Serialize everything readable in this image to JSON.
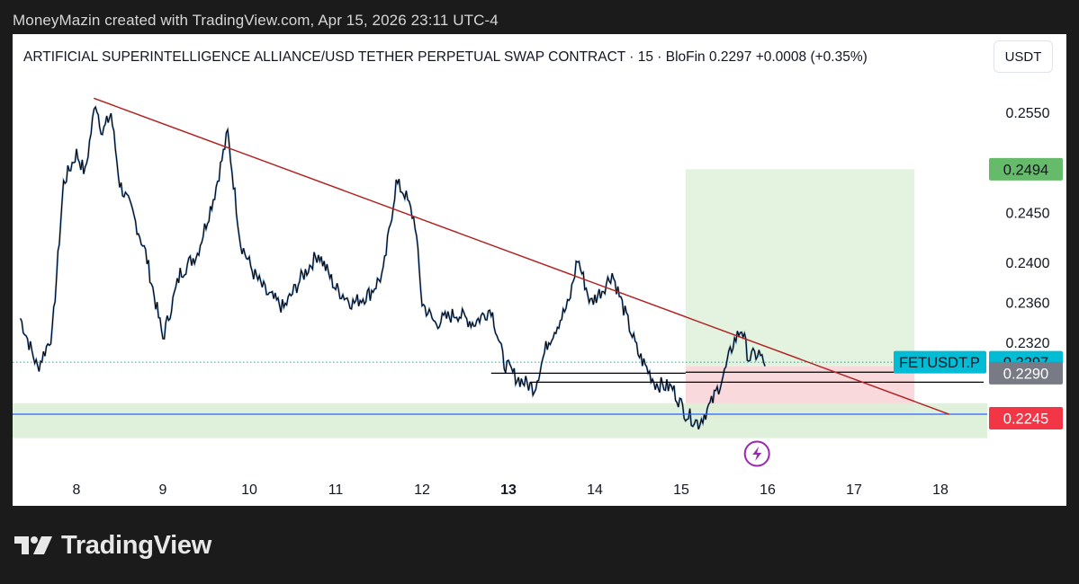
{
  "header": {
    "attribution": "MoneyMazin created with TradingView.com, Apr 15, 2026 23:11 UTC-4"
  },
  "toolbar": {
    "currency_label": "USDT"
  },
  "footer": {
    "brand": "TradingView"
  },
  "chart_data": {
    "type": "line",
    "title": "ARTIFICIAL SUPERINTELLIGENCE ALLIANCE/USD TETHER PERPETUAL SWAP CONTRACT · 15 · BloFin  0.2297  +0.0008 (+0.35%)",
    "interval": "15",
    "exchange": "BloFin",
    "last_price": 0.2297,
    "change": "+0.0008",
    "change_pct": "+0.35%",
    "x_day_range": [
      7.35,
      18.5
    ],
    "x_ticks": [
      {
        "label": "8",
        "day": 8,
        "bold": false
      },
      {
        "label": "9",
        "day": 9,
        "bold": false
      },
      {
        "label": "10",
        "day": 10,
        "bold": false
      },
      {
        "label": "11",
        "day": 11,
        "bold": false
      },
      {
        "label": "12",
        "day": 12,
        "bold": false
      },
      {
        "label": "13",
        "day": 13,
        "bold": true
      },
      {
        "label": "14",
        "day": 14,
        "bold": false
      },
      {
        "label": "15",
        "day": 15,
        "bold": false
      },
      {
        "label": "16",
        "day": 16,
        "bold": false
      },
      {
        "label": "17",
        "day": 17,
        "bold": false
      },
      {
        "label": "18",
        "day": 18,
        "bold": false
      }
    ],
    "y_ticks": [
      "0.2320",
      "0.2360",
      "0.2400",
      "0.2450",
      "0.2550"
    ],
    "y_anchor_prices": [
      0.255,
      0.232
    ],
    "price_path": [
      [
        7.35,
        0.2345
      ],
      [
        7.55,
        0.2295
      ],
      [
        7.72,
        0.233
      ],
      [
        7.85,
        0.248
      ],
      [
        8.0,
        0.251
      ],
      [
        8.1,
        0.249
      ],
      [
        8.22,
        0.2562
      ],
      [
        8.3,
        0.253
      ],
      [
        8.4,
        0.255
      ],
      [
        8.5,
        0.248
      ],
      [
        8.65,
        0.245
      ],
      [
        8.8,
        0.241
      ],
      [
        9.0,
        0.2325
      ],
      [
        9.2,
        0.239
      ],
      [
        9.4,
        0.241
      ],
      [
        9.6,
        0.247
      ],
      [
        9.75,
        0.253
      ],
      [
        9.9,
        0.242
      ],
      [
        10.05,
        0.239
      ],
      [
        10.2,
        0.237
      ],
      [
        10.4,
        0.2355
      ],
      [
        10.6,
        0.2385
      ],
      [
        10.8,
        0.241
      ],
      [
        11.0,
        0.2375
      ],
      [
        11.2,
        0.236
      ],
      [
        11.4,
        0.237
      ],
      [
        11.55,
        0.239
      ],
      [
        11.7,
        0.248
      ],
      [
        11.8,
        0.247
      ],
      [
        11.92,
        0.244
      ],
      [
        12.0,
        0.236
      ],
      [
        12.15,
        0.234
      ],
      [
        12.4,
        0.235
      ],
      [
        12.6,
        0.234
      ],
      [
        12.8,
        0.2355
      ],
      [
        12.95,
        0.23
      ],
      [
        13.1,
        0.2285
      ],
      [
        13.3,
        0.2275
      ],
      [
        13.45,
        0.232
      ],
      [
        13.7,
        0.236
      ],
      [
        13.8,
        0.2405
      ],
      [
        13.95,
        0.236
      ],
      [
        14.1,
        0.2375
      ],
      [
        14.2,
        0.239
      ],
      [
        14.35,
        0.235
      ],
      [
        14.5,
        0.231
      ],
      [
        14.7,
        0.228
      ],
      [
        14.9,
        0.2275
      ],
      [
        15.05,
        0.225
      ],
      [
        15.2,
        0.224
      ],
      [
        15.35,
        0.226
      ],
      [
        15.5,
        0.229
      ],
      [
        15.6,
        0.232
      ],
      [
        15.7,
        0.2335
      ],
      [
        15.78,
        0.2305
      ],
      [
        15.9,
        0.231
      ],
      [
        15.97,
        0.2297
      ]
    ],
    "trendline": {
      "from": [
        8.2,
        0.2565
      ],
      "to": [
        18.1,
        0.2249
      ]
    },
    "position": {
      "x_range": [
        15.05,
        17.7
      ],
      "entry": 0.2297,
      "target": 0.2494,
      "stop": 0.2245
    },
    "support_zone": {
      "high": 0.226,
      "low": 0.2225
    },
    "blue_line": 0.2249,
    "dotted_line": 0.2301,
    "horizontal_lines": [
      {
        "from_day": 12.8,
        "to_day": 15.05,
        "price": 0.229
      },
      {
        "from_day": 13.25,
        "to_day": 18.5,
        "price": 0.2281
      },
      {
        "from_day": 15.05,
        "to_day": 18.2,
        "price": 0.2291
      }
    ],
    "price_labels": [
      {
        "text": "0.2494",
        "price": 0.2494,
        "bg": "#66bb6a",
        "fg": "#131722"
      },
      {
        "text": "0.2297",
        "price": 0.2301,
        "bg": "#00bcd4",
        "fg": "#131722"
      },
      {
        "text": "0.2290",
        "price": 0.229,
        "bg": "#787b86",
        "fg": "#ffffff"
      },
      {
        "text": "0.2245",
        "price": 0.2245,
        "bg": "#f23645",
        "fg": "#ffffff"
      }
    ],
    "symbol_tag": "FETUSDT.P",
    "event_icon": "lightning-bolt",
    "event_day": 15.95
  }
}
